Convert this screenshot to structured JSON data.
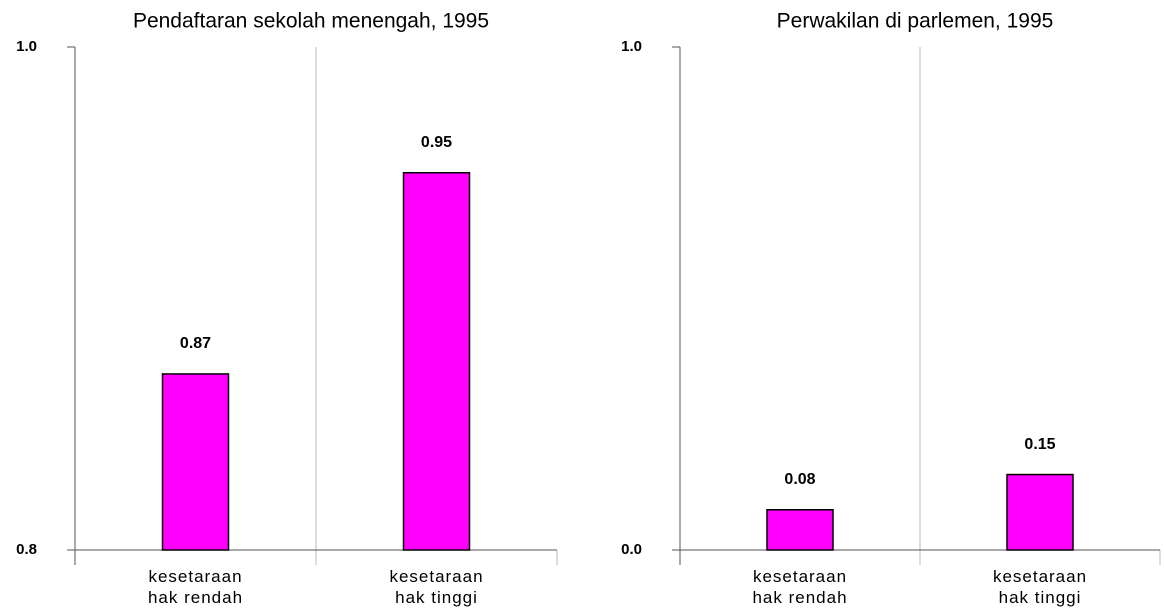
{
  "chart_data": [
    {
      "type": "bar",
      "title": "Pendaftaran sekolah menengah, 1995",
      "categories": [
        "kesetaraan hak rendah",
        "kesetaraan hak tinggi"
      ],
      "values": [
        0.87,
        0.95
      ],
      "color": "#ff00ff",
      "ylim": [
        0.8,
        1
      ],
      "yticks": [
        0.8,
        {
          "value": 1,
          "label": "1.0"
        }
      ]
    },
    {
      "type": "bar",
      "title": "Perwakilan di parlemen, 1995",
      "categories": [
        "kesetaraan hak rendah",
        "kesetaraan hak tinggi"
      ],
      "values": [
        0.08,
        0.15
      ],
      "color": "#ff00ff",
      "ylim": [
        0,
        1
      ],
      "yticks": [
        {
          "value": 0,
          "label": "0.0"
        },
        {
          "value": 1,
          "label": "1.0"
        }
      ]
    }
  ]
}
